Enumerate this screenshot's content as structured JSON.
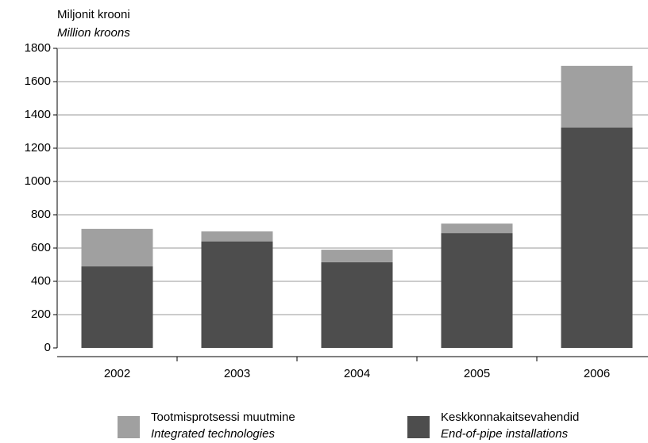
{
  "chart_data": {
    "type": "stacked_bar",
    "ylabel": "Miljonit krooni",
    "ylabel_en": "Million kroons",
    "categories": [
      "2002",
      "2003",
      "2004",
      "2005",
      "2006"
    ],
    "series": [
      {
        "name": "Keskkonnakaitsevahendid",
        "name_en": "End-of-pipe installations",
        "color": "#4d4d4d",
        "values": [
          490,
          640,
          515,
          690,
          1325
        ]
      },
      {
        "name": "Tootmisprotsessi muutmine",
        "name_en": "Integrated technologies",
        "color": "#a0a0a0",
        "values": [
          225,
          60,
          75,
          57,
          370
        ]
      }
    ],
    "ylim": [
      0,
      1800
    ],
    "yticks": [
      0,
      200,
      400,
      600,
      800,
      1000,
      1200,
      1400,
      1600,
      1800
    ],
    "grid": true
  }
}
